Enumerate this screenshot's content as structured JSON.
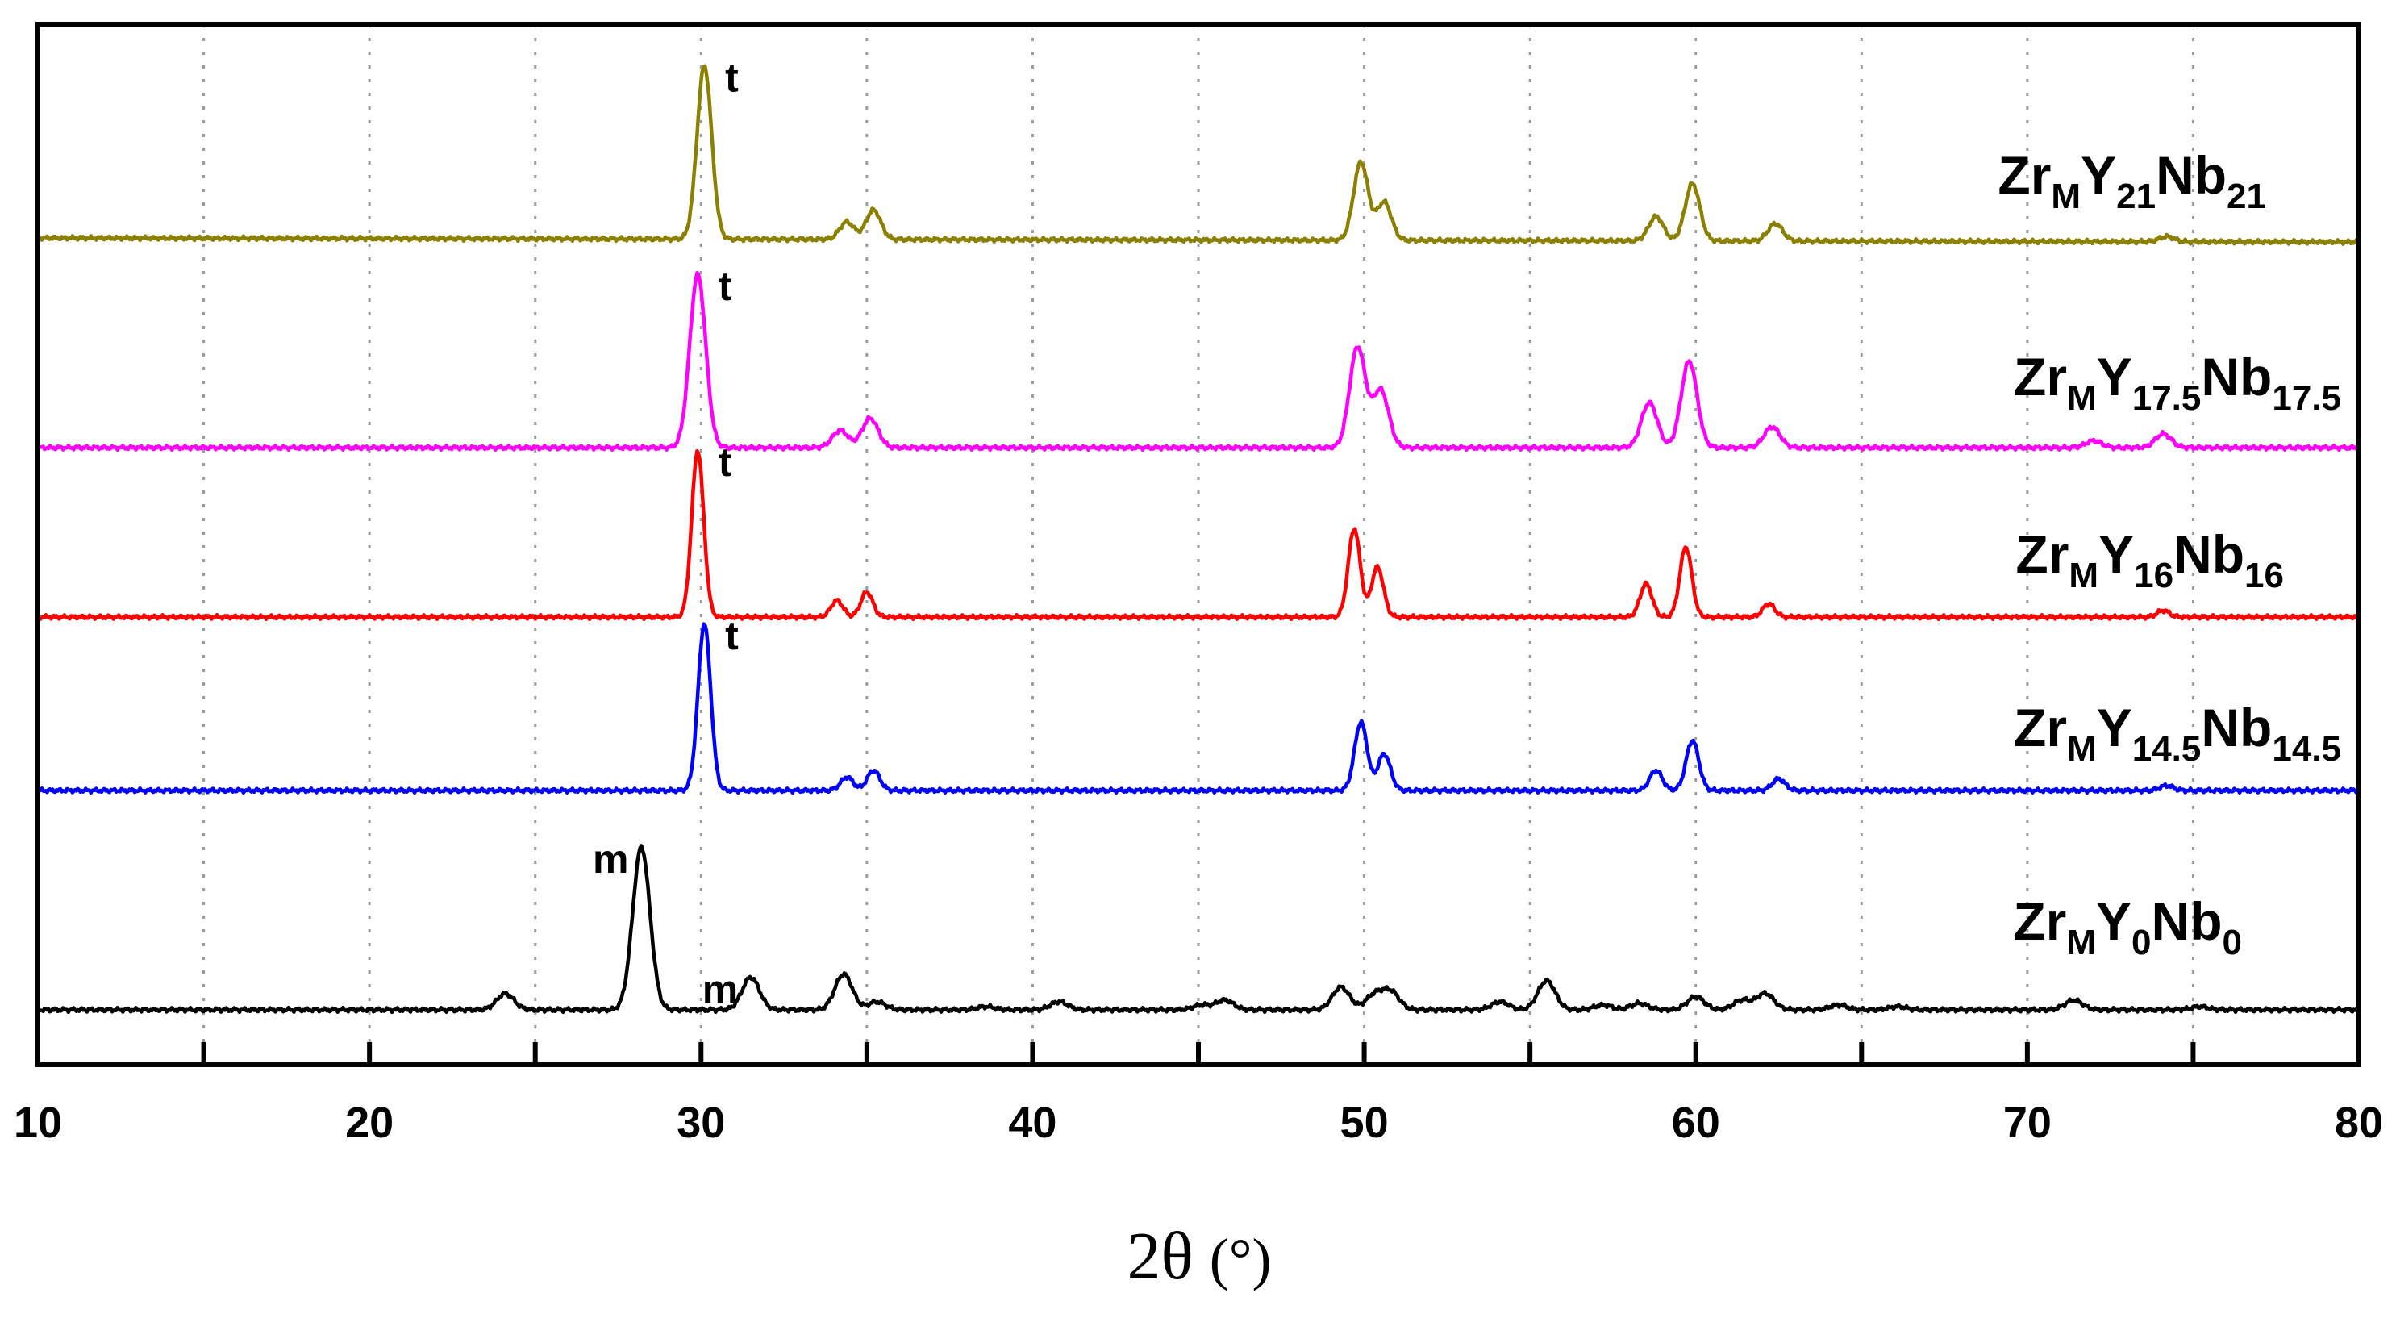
{
  "chart_data": {
    "type": "line",
    "xlabel": "2θ",
    "xlabel_unit": "(°)",
    "xlim": [
      10,
      80
    ],
    "x_ticks": [
      10,
      20,
      30,
      40,
      50,
      60,
      70,
      80
    ],
    "grid": "vertical-dotted",
    "legend_placement": "labels at right of each trace",
    "series": [
      {
        "parts": [
          [
            "Zr",
            ""
          ],
          [
            "M",
            "sub"
          ],
          [
            "Y",
            ""
          ],
          [
            "21",
            "sub"
          ],
          [
            "Nb",
            ""
          ],
          [
            "21",
            "sub"
          ]
        ],
        "color": "#8B8000",
        "peaks": [
          [
            30.1,
            1.0
          ],
          [
            34.4,
            0.1
          ],
          [
            35.2,
            0.17
          ],
          [
            49.9,
            0.45
          ],
          [
            50.6,
            0.22
          ],
          [
            58.8,
            0.14
          ],
          [
            59.9,
            0.33
          ],
          [
            62.4,
            0.1
          ],
          [
            74.2,
            0.03
          ]
        ],
        "annotations": [
          {
            "text": "t",
            "x": 30.1
          }
        ]
      },
      {
        "parts": [
          [
            "Zr",
            ""
          ],
          [
            "M",
            "sub"
          ],
          [
            "Y",
            ""
          ],
          [
            "17.5",
            "sub"
          ],
          [
            "Nb",
            ""
          ],
          [
            "17.5",
            "sub"
          ]
        ],
        "color": "#FF00FF",
        "peaks": [
          [
            29.9,
            1.0
          ],
          [
            34.2,
            0.1
          ],
          [
            35.1,
            0.17
          ],
          [
            49.8,
            0.58
          ],
          [
            50.5,
            0.33
          ],
          [
            58.6,
            0.26
          ],
          [
            59.8,
            0.5
          ],
          [
            62.3,
            0.12
          ],
          [
            72.0,
            0.04
          ],
          [
            74.1,
            0.08
          ]
        ],
        "annotations": [
          {
            "text": "t",
            "x": 29.9
          }
        ]
      },
      {
        "parts": [
          [
            "Zr",
            ""
          ],
          [
            "M",
            "sub"
          ],
          [
            "Y",
            ""
          ],
          [
            "16",
            "sub"
          ],
          [
            "Nb",
            ""
          ],
          [
            "16",
            "sub"
          ]
        ],
        "color": "#FF0000",
        "peaks": [
          [
            29.9,
            1.0
          ],
          [
            34.1,
            0.1
          ],
          [
            35.0,
            0.15
          ],
          [
            49.7,
            0.53
          ],
          [
            50.4,
            0.3
          ],
          [
            58.5,
            0.2
          ],
          [
            59.7,
            0.42
          ],
          [
            62.2,
            0.08
          ],
          [
            74.1,
            0.04
          ]
        ],
        "annotations": [
          {
            "text": "t",
            "x": 29.9
          }
        ]
      },
      {
        "parts": [
          [
            "Zr",
            ""
          ],
          [
            "M",
            "sub"
          ],
          [
            "Y",
            ""
          ],
          [
            "14.5",
            "sub"
          ],
          [
            "Nb",
            ""
          ],
          [
            "14.5",
            "sub"
          ]
        ],
        "color": "#0000FF",
        "peaks": [
          [
            30.1,
            1.0
          ],
          [
            34.4,
            0.08
          ],
          [
            35.2,
            0.12
          ],
          [
            49.9,
            0.41
          ],
          [
            50.6,
            0.22
          ],
          [
            58.8,
            0.12
          ],
          [
            59.9,
            0.3
          ],
          [
            62.5,
            0.07
          ],
          [
            74.2,
            0.03
          ]
        ],
        "annotations": [
          {
            "text": "t",
            "x": 30.1
          }
        ]
      },
      {
        "parts": [
          [
            "Zr",
            ""
          ],
          [
            "M",
            "sub"
          ],
          [
            "Y",
            ""
          ],
          [
            "0",
            "sub"
          ],
          [
            "Nb",
            ""
          ],
          [
            "0",
            "sub"
          ]
        ],
        "color": "#000000",
        "peaks": [
          [
            24.1,
            0.1
          ],
          [
            28.2,
            1.0
          ],
          [
            31.5,
            0.2
          ],
          [
            34.3,
            0.22
          ],
          [
            35.3,
            0.05
          ],
          [
            38.6,
            0.02
          ],
          [
            40.8,
            0.05
          ],
          [
            45.1,
            0.03
          ],
          [
            45.8,
            0.06
          ],
          [
            49.3,
            0.14
          ],
          [
            50.3,
            0.09
          ],
          [
            50.8,
            0.11
          ],
          [
            54.1,
            0.05
          ],
          [
            55.5,
            0.18
          ],
          [
            57.2,
            0.03
          ],
          [
            58.3,
            0.04
          ],
          [
            60.0,
            0.08
          ],
          [
            61.4,
            0.06
          ],
          [
            62.1,
            0.1
          ],
          [
            64.3,
            0.03
          ],
          [
            66.1,
            0.02
          ],
          [
            71.4,
            0.06
          ],
          [
            75.2,
            0.02
          ]
        ],
        "annotations": [
          {
            "text": "m",
            "x": 28.2
          },
          {
            "text": "m",
            "x": 31.5
          }
        ]
      }
    ]
  }
}
